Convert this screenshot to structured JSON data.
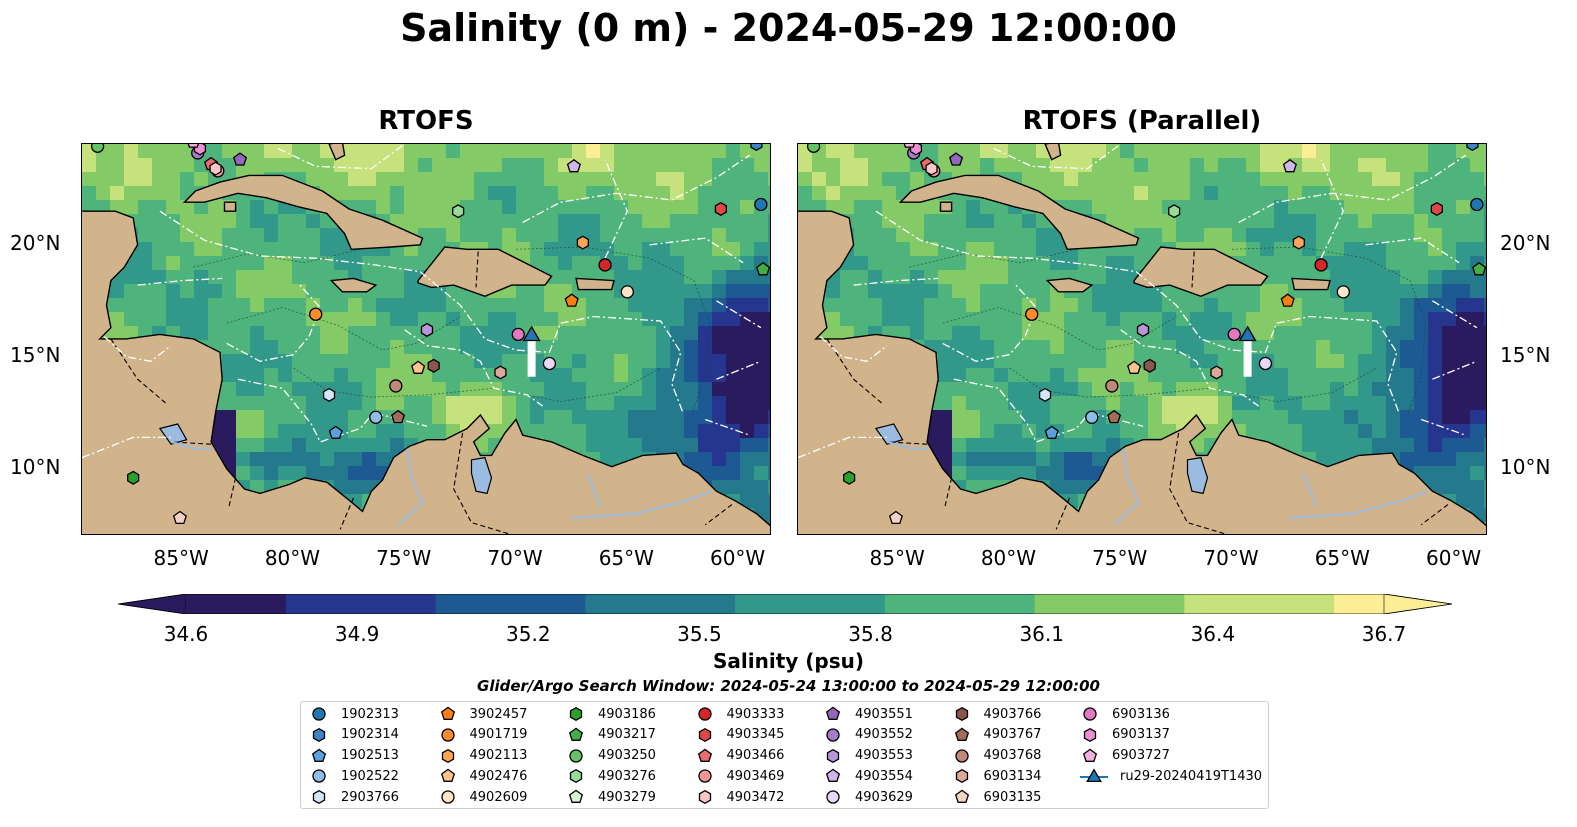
{
  "title": "Salinity (0 m) - 2024-05-29 12:00:00",
  "panels": [
    {
      "title": "RTOFS",
      "variant": "a"
    },
    {
      "title": "RTOFS (Parallel)",
      "variant": "b"
    }
  ],
  "axes": {
    "lon_ticks": [
      "85°W",
      "80°W",
      "75°W",
      "70°W",
      "65°W",
      "60°W"
    ],
    "lat_ticks": [
      "20°N",
      "15°N",
      "10°N"
    ],
    "lon_range": [
      -89.5,
      -58.5
    ],
    "lat_range": [
      7,
      24.5
    ],
    "grid": true
  },
  "colorbar": {
    "label": "Salinity (psu)",
    "ticks": [
      "34.6",
      "34.9",
      "35.2",
      "35.5",
      "35.8",
      "36.1",
      "36.4",
      "36.7"
    ],
    "range": [
      34.6,
      36.7
    ],
    "extend": "both",
    "colormap": [
      "#2a1a5e",
      "#26368f",
      "#1d5a94",
      "#247a8c",
      "#32998a",
      "#4fb37c",
      "#84ca66",
      "#c6e27c",
      "#fbee95"
    ]
  },
  "search_window": "Glider/Argo Search Window: 2024-05-24 13:00:00 to 2024-05-29 12:00:00",
  "colors": {
    "land": "#d2b48c",
    "lake": "#9bbce0"
  },
  "legend": [
    {
      "label": "1902313",
      "marker": "circle",
      "color": "#1f77b4"
    },
    {
      "label": "1902314",
      "marker": "hexagon",
      "color": "#3a85c4"
    },
    {
      "label": "1902513",
      "marker": "pentagon",
      "color": "#5aa0dc"
    },
    {
      "label": "1902522",
      "marker": "circle",
      "color": "#8fbde9"
    },
    {
      "label": "2903766",
      "marker": "hexagon",
      "color": "#d3e6f7"
    },
    {
      "label": "3902457",
      "marker": "pentagon",
      "color": "#ff7f0e"
    },
    {
      "label": "4901719",
      "marker": "circle",
      "color": "#ff8c2a"
    },
    {
      "label": "4902113",
      "marker": "hexagon",
      "color": "#ffa555"
    },
    {
      "label": "4902476",
      "marker": "pentagon",
      "color": "#ffc48c"
    },
    {
      "label": "4902609",
      "marker": "circle",
      "color": "#ffe4c8"
    },
    {
      "label": "4903186",
      "marker": "hexagon",
      "color": "#2ca02c"
    },
    {
      "label": "4903217",
      "marker": "pentagon",
      "color": "#45ad45"
    },
    {
      "label": "4903250",
      "marker": "circle",
      "color": "#66c266"
    },
    {
      "label": "4903276",
      "marker": "hexagon",
      "color": "#98dc98"
    },
    {
      "label": "4903279",
      "marker": "pentagon",
      "color": "#d6f5d6"
    },
    {
      "label": "4903333",
      "marker": "circle",
      "color": "#d62728"
    },
    {
      "label": "4903345",
      "marker": "hexagon",
      "color": "#e04848"
    },
    {
      "label": "4903466",
      "marker": "pentagon",
      "color": "#ea6c6c"
    },
    {
      "label": "4903469",
      "marker": "circle",
      "color": "#f29696"
    },
    {
      "label": "4903472",
      "marker": "hexagon",
      "color": "#fbc8c8"
    },
    {
      "label": "4903551",
      "marker": "pentagon",
      "color": "#9467bd"
    },
    {
      "label": "4903552",
      "marker": "circle",
      "color": "#a57ccb"
    },
    {
      "label": "4903553",
      "marker": "hexagon",
      "color": "#b896da"
    },
    {
      "label": "4903554",
      "marker": "pentagon",
      "color": "#d0b6ea"
    },
    {
      "label": "4903629",
      "marker": "circle",
      "color": "#e8d8f6"
    },
    {
      "label": "4903766",
      "marker": "hexagon",
      "color": "#8c564b"
    },
    {
      "label": "4903767",
      "marker": "pentagon",
      "color": "#a46a5c"
    },
    {
      "label": "4903768",
      "marker": "circle",
      "color": "#c08878"
    },
    {
      "label": "6903134",
      "marker": "hexagon",
      "color": "#dca898"
    },
    {
      "label": "6903135",
      "marker": "pentagon",
      "color": "#f5d2c6"
    },
    {
      "label": "6903136",
      "marker": "circle",
      "color": "#e377c2"
    },
    {
      "label": "6903137",
      "marker": "hexagon",
      "color": "#ec8fd0"
    },
    {
      "label": "6903727",
      "marker": "pentagon",
      "color": "#f5afe0"
    },
    {
      "label": "ru29-20240419T1430",
      "marker": "triangle-line",
      "color": "#1f77b4"
    }
  ],
  "floats": [
    {
      "id": "1902313",
      "lon": -59.0,
      "lat": 21.8
    },
    {
      "id": "1902314",
      "lon": -59.2,
      "lat": 24.5
    },
    {
      "id": "1902513",
      "lon": -78.1,
      "lat": 11.6
    },
    {
      "id": "1902522",
      "lon": -76.3,
      "lat": 12.3
    },
    {
      "id": "2903766",
      "lon": -78.4,
      "lat": 13.3
    },
    {
      "id": "3902457",
      "lon": -67.5,
      "lat": 17.5
    },
    {
      "id": "4901719",
      "lon": -79.0,
      "lat": 16.9
    },
    {
      "id": "4902113",
      "lon": -67.0,
      "lat": 20.1
    },
    {
      "id": "4902476",
      "lon": -74.4,
      "lat": 14.5
    },
    {
      "id": "4902609",
      "lon": -65.0,
      "lat": 17.9
    },
    {
      "id": "4903186",
      "lon": -87.2,
      "lat": 9.6
    },
    {
      "id": "4903217",
      "lon": -58.9,
      "lat": 18.9
    },
    {
      "id": "4903250",
      "lon": -88.8,
      "lat": 24.4
    },
    {
      "id": "4903276",
      "lon": -72.6,
      "lat": 21.5
    },
    {
      "id": "4903279",
      "lon": -90.2,
      "lat": 24.4
    },
    {
      "id": "4903333",
      "lon": -66.0,
      "lat": 19.1
    },
    {
      "id": "4903345",
      "lon": -60.8,
      "lat": 21.6
    },
    {
      "id": "4903466",
      "lon": -83.7,
      "lat": 23.6
    },
    {
      "id": "4903469",
      "lon": -83.4,
      "lat": 23.3
    },
    {
      "id": "4903472",
      "lon": -83.5,
      "lat": 23.4
    },
    {
      "id": "4903551",
      "lon": -82.4,
      "lat": 23.8
    },
    {
      "id": "4903552",
      "lon": -84.3,
      "lat": 24.1
    },
    {
      "id": "4903553",
      "lon": -74.0,
      "lat": 16.2
    },
    {
      "id": "4903554",
      "lon": -67.4,
      "lat": 23.5
    },
    {
      "id": "4903629",
      "lon": -68.5,
      "lat": 14.7
    },
    {
      "id": "4903766",
      "lon": -73.7,
      "lat": 14.6
    },
    {
      "id": "4903767",
      "lon": -75.3,
      "lat": 12.3
    },
    {
      "id": "4903768",
      "lon": -75.4,
      "lat": 13.7
    },
    {
      "id": "6903134",
      "lon": -70.7,
      "lat": 14.3
    },
    {
      "id": "6903135",
      "lon": -85.1,
      "lat": 7.8
    },
    {
      "id": "6903136",
      "lon": -69.9,
      "lat": 16.0
    },
    {
      "id": "6903137",
      "lon": -84.2,
      "lat": 24.3
    },
    {
      "id": "6903727",
      "lon": -84.5,
      "lat": 24.6
    }
  ],
  "glider": {
    "id": "ru29-20240419T1430",
    "lon": -69.3,
    "lat": 16.0,
    "track_end_lat": 14.2
  }
}
